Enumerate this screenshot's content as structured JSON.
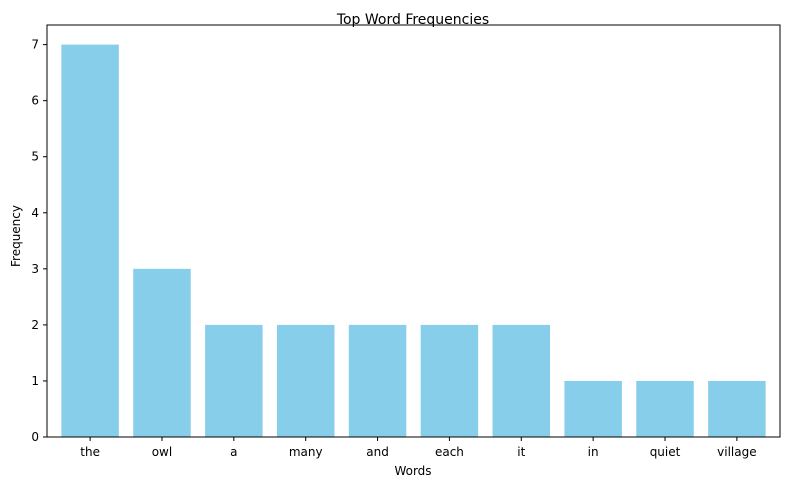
{
  "chart_data": {
    "type": "bar",
    "title": "Top Word Frequencies",
    "xlabel": "Words",
    "ylabel": "Frequency",
    "categories": [
      "the",
      "owl",
      "a",
      "many",
      "and",
      "each",
      "it",
      "in",
      "quiet",
      "village"
    ],
    "values": [
      7,
      3,
      2,
      2,
      2,
      2,
      2,
      1,
      1,
      1
    ],
    "ylim": [
      0,
      7.35
    ],
    "yticks": [
      0,
      1,
      2,
      3,
      4,
      5,
      6,
      7
    ],
    "grid": false,
    "legend": "none",
    "bar_color": "#87CEEB",
    "axis_color": "#000000"
  }
}
